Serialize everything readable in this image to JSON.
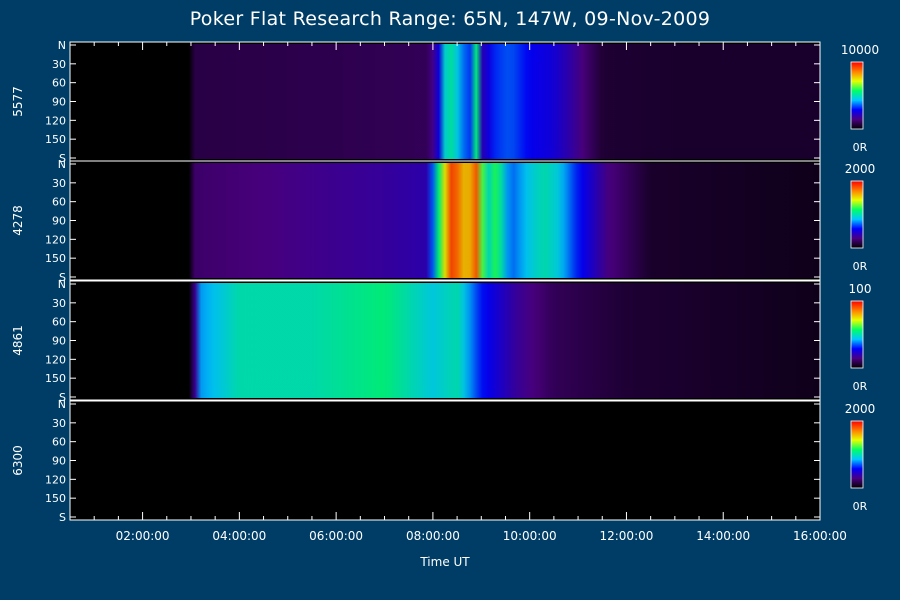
{
  "chart_data": {
    "type": "heatmap",
    "title": "Poker Flat Research Range: 65N, 147W, 09-Nov-2009",
    "xlabel": "Time UT",
    "x_ticks": [
      "02:00:00",
      "04:00:00",
      "06:00:00",
      "08:00:00",
      "10:00:00",
      "12:00:00",
      "14:00:00",
      "16:00:00"
    ],
    "x_range_hours": [
      0.5,
      16.0
    ],
    "y_ticks": [
      "N",
      "30",
      "60",
      "90",
      "120",
      "150",
      "S"
    ],
    "y_range_deg": [
      0,
      180
    ],
    "colorbar_min_label": "0R",
    "panels": [
      {
        "name": "5577",
        "colorbar_max": 10000,
        "colorbar_max_label": "10000",
        "profile": [
          [
            0.5,
            0
          ],
          [
            3.0,
            0
          ],
          [
            3.05,
            0.08
          ],
          [
            6.0,
            0.09
          ],
          [
            7.9,
            0.1
          ],
          [
            8.1,
            0.22
          ],
          [
            8.3,
            0.55
          ],
          [
            8.5,
            0.45
          ],
          [
            8.75,
            0.3
          ],
          [
            8.9,
            0.55
          ],
          [
            9.0,
            0.2
          ],
          [
            9.3,
            0.32
          ],
          [
            9.6,
            0.35
          ],
          [
            10.0,
            0.28
          ],
          [
            10.5,
            0.25
          ],
          [
            10.9,
            0.18
          ],
          [
            11.5,
            0.06
          ],
          [
            13.0,
            0.05
          ],
          [
            16.0,
            0.05
          ]
        ]
      },
      {
        "name": "4278",
        "colorbar_max": 2000,
        "colorbar_max_label": "2000",
        "profile": [
          [
            0.5,
            0
          ],
          [
            3.0,
            0
          ],
          [
            3.05,
            0.12
          ],
          [
            5.5,
            0.16
          ],
          [
            7.0,
            0.18
          ],
          [
            7.9,
            0.2
          ],
          [
            8.15,
            0.6
          ],
          [
            8.4,
            0.95
          ],
          [
            8.7,
            0.75
          ],
          [
            8.9,
            0.9
          ],
          [
            9.1,
            0.45
          ],
          [
            9.3,
            0.6
          ],
          [
            9.6,
            0.35
          ],
          [
            10.0,
            0.45
          ],
          [
            10.3,
            0.5
          ],
          [
            10.6,
            0.45
          ],
          [
            11.0,
            0.3
          ],
          [
            11.6,
            0.15
          ],
          [
            12.5,
            0.05
          ],
          [
            16.0,
            0.03
          ]
        ]
      },
      {
        "name": "4861",
        "colorbar_max": 100,
        "colorbar_max_label": "100",
        "profile": [
          [
            0.5,
            0
          ],
          [
            3.0,
            0
          ],
          [
            3.2,
            0.4
          ],
          [
            4.0,
            0.5
          ],
          [
            5.5,
            0.5
          ],
          [
            7.0,
            0.55
          ],
          [
            8.0,
            0.45
          ],
          [
            8.5,
            0.5
          ],
          [
            9.0,
            0.3
          ],
          [
            9.7,
            0.18
          ],
          [
            10.5,
            0.1
          ],
          [
            12.0,
            0.06
          ],
          [
            16.0,
            0.03
          ]
        ]
      },
      {
        "name": "6300",
        "colorbar_max": 2000,
        "colorbar_max_label": "2000",
        "profile": [
          [
            0.5,
            0
          ],
          [
            16.0,
            0
          ]
        ]
      }
    ],
    "colormap": [
      "#000000",
      "#4b0082",
      "#0000ff",
      "#00c8ff",
      "#00ff66",
      "#e6ff00",
      "#ff8000",
      "#ff0000"
    ],
    "grid": false,
    "legend": "colorbars right of each panel"
  }
}
